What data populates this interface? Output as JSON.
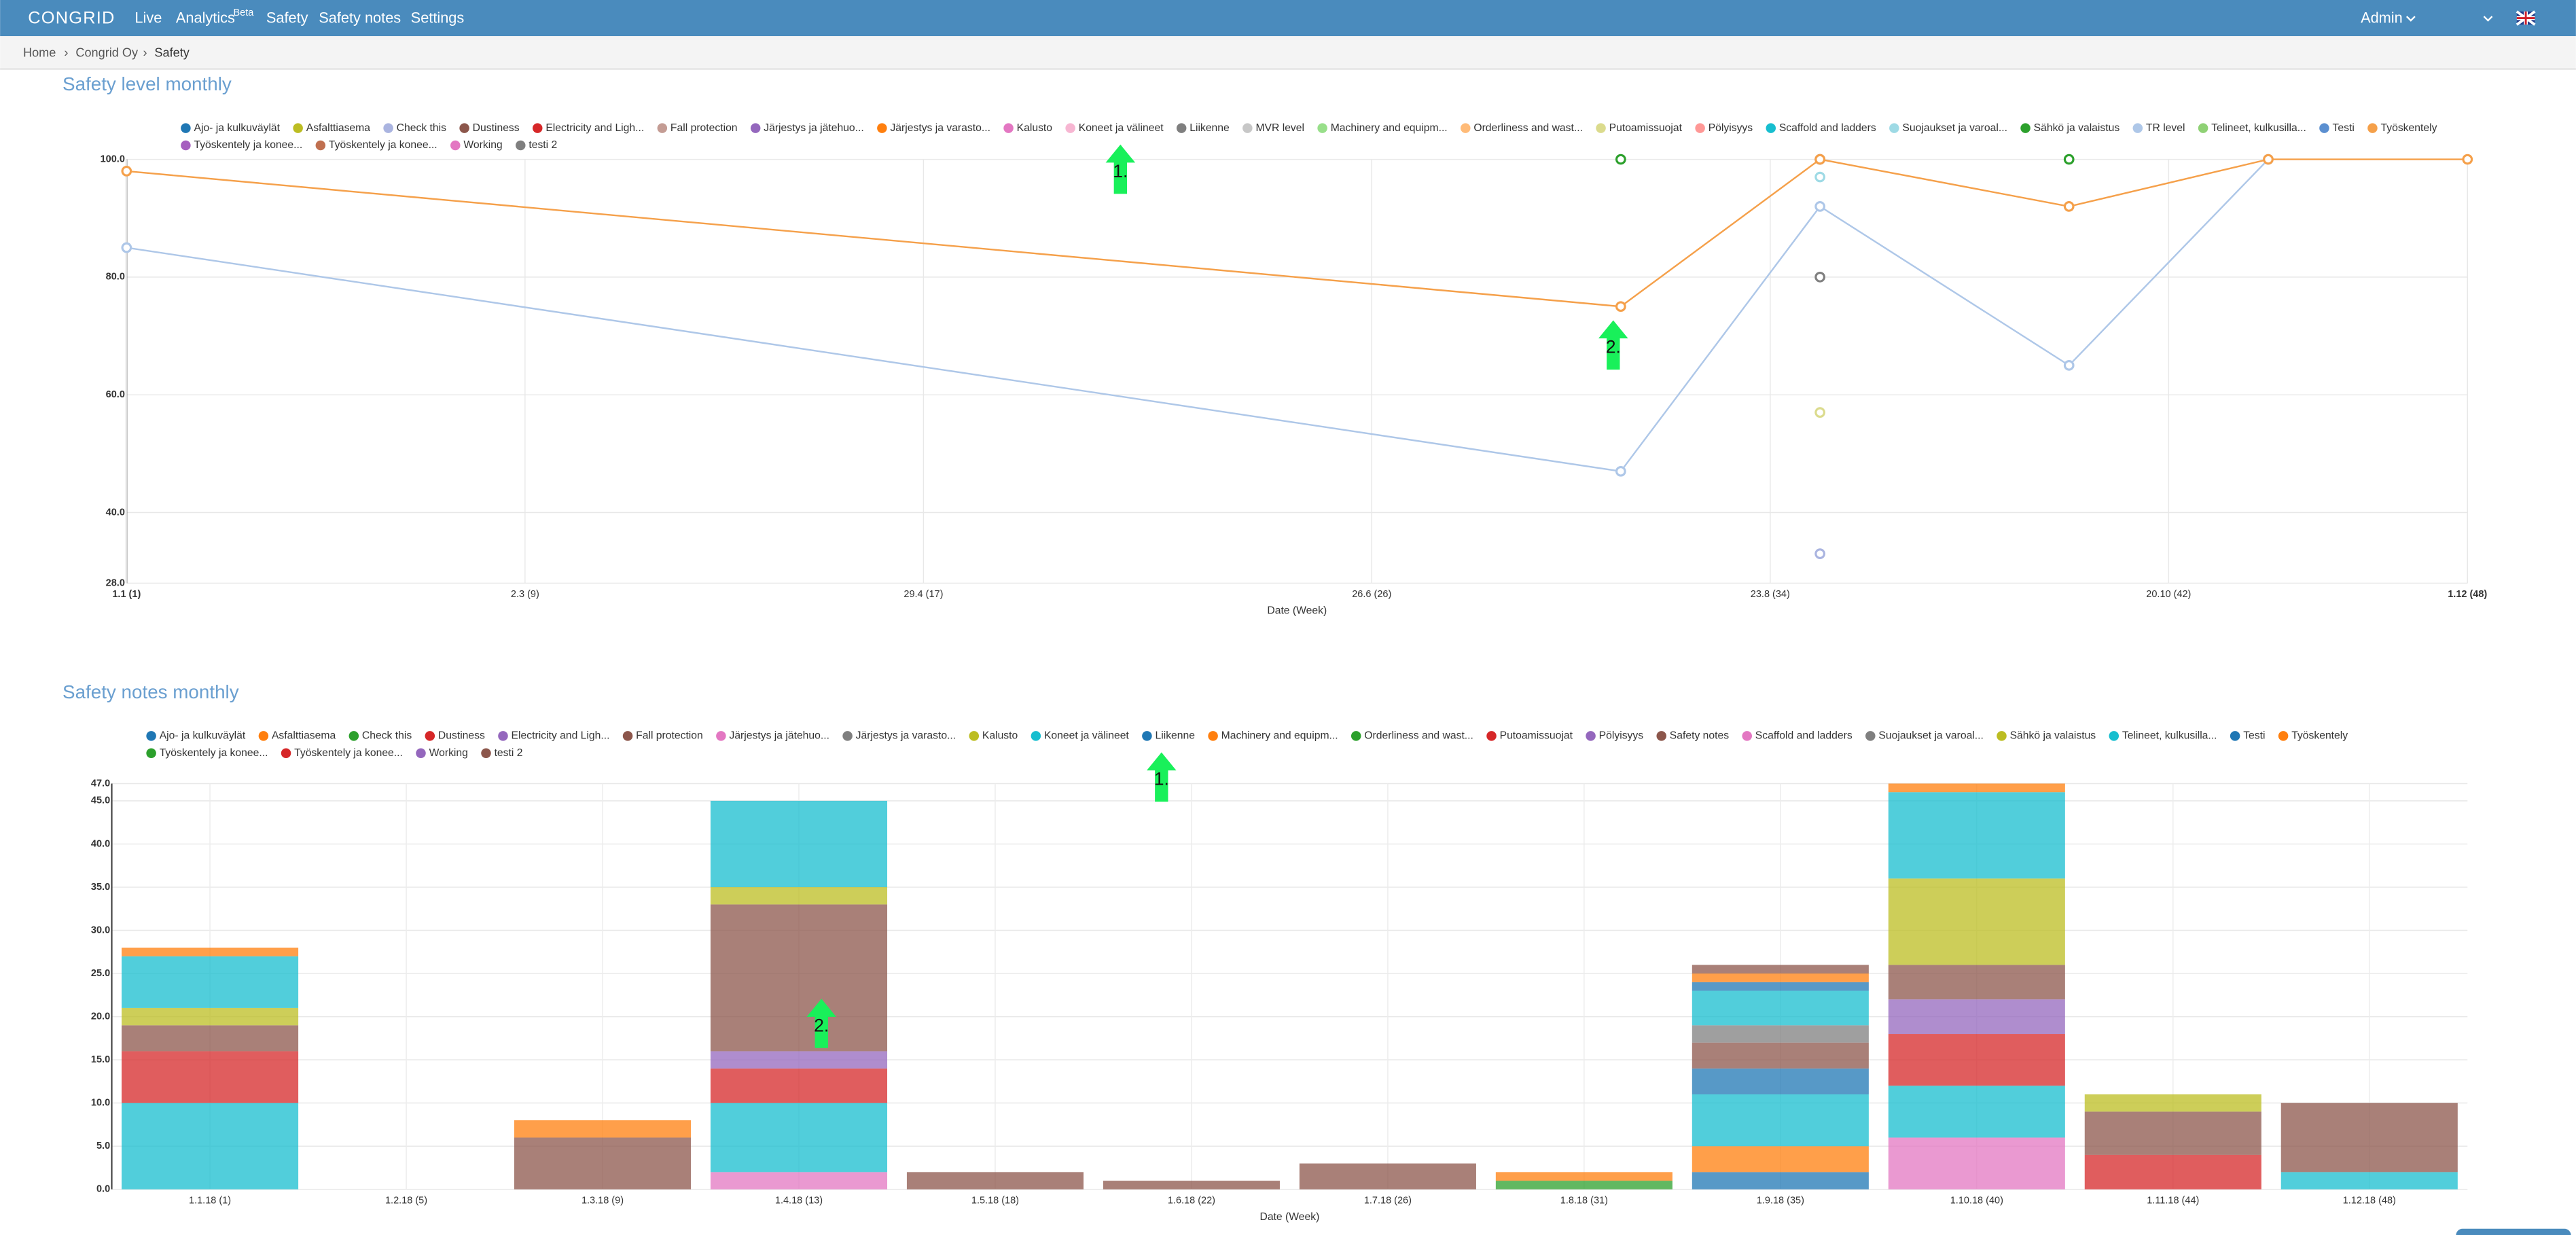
{
  "nav": {
    "logo": "CONGRID",
    "items": [
      "Live",
      "Analytics",
      "Safety",
      "Safety notes",
      "Settings"
    ],
    "beta": "Beta",
    "user": "Admin"
  },
  "breadcrumb": [
    "Home",
    "Congrid Oy",
    "Safety"
  ],
  "charts": [
    {
      "type": "line",
      "title": "Safety level monthly",
      "xlabel": "Date (Week)",
      "x": [
        1,
        31,
        35,
        40,
        44,
        48
      ],
      "xlim": [
        1,
        48
      ],
      "xticks": [
        {
          "value": 1,
          "label": "1.1 (1)"
        },
        {
          "value": 9,
          "label": "2.3 (9)"
        },
        {
          "value": 17,
          "label": "29.4 (17)"
        },
        {
          "value": 26,
          "label": "26.6 (26)"
        },
        {
          "value": 34,
          "label": "23.8 (34)"
        },
        {
          "value": 42,
          "label": "20.10 (42)"
        },
        {
          "value": 48,
          "label": "1.12 (48)"
        }
      ],
      "ylim": [
        28,
        100
      ],
      "yticks": [
        {
          "value": 28,
          "label": "28.0"
        },
        {
          "value": 40,
          "label": "40.0"
        },
        {
          "value": 60,
          "label": "60.0"
        },
        {
          "value": 80,
          "label": "80.0"
        },
        {
          "value": 100,
          "label": "100.0"
        }
      ],
      "annotations": [
        "1.",
        "2."
      ],
      "series": [
        {
          "name": "Ajo- ja kulkuväylät",
          "color": "#1f77b4",
          "values": [
            null,
            null,
            null,
            null,
            null,
            null
          ]
        },
        {
          "name": "Asfalttiasema",
          "color": "#bcbd22",
          "values": [
            null,
            null,
            null,
            null,
            null,
            null
          ]
        },
        {
          "name": "Check this",
          "color": "#aab4e0",
          "values": [
            null,
            null,
            33,
            null,
            null,
            null
          ]
        },
        {
          "name": "Dustiness",
          "color": "#8c564b",
          "values": [
            null,
            null,
            100,
            null,
            null,
            null
          ]
        },
        {
          "name": "Electricity and Ligh...",
          "color": "#d62728",
          "values": [
            null,
            null,
            null,
            null,
            null,
            null
          ]
        },
        {
          "name": "Fall protection",
          "color": "#c49c94",
          "values": [
            null,
            null,
            null,
            null,
            null,
            null
          ]
        },
        {
          "name": "Järjestys ja jätehuo...",
          "color": "#9467bd",
          "values": [
            null,
            null,
            null,
            null,
            null,
            null
          ]
        },
        {
          "name": "Järjestys ja varasto...",
          "color": "#ff7f0e",
          "values": [
            null,
            null,
            null,
            null,
            null,
            null
          ]
        },
        {
          "name": "Kalusto",
          "color": "#e377c2",
          "values": [
            null,
            null,
            null,
            null,
            null,
            null
          ]
        },
        {
          "name": "Koneet ja välineet",
          "color": "#f7b6d2",
          "values": [
            null,
            null,
            null,
            null,
            null,
            null
          ]
        },
        {
          "name": "Liikenne",
          "color": "#7f7f7f",
          "values": [
            null,
            null,
            80,
            null,
            null,
            null
          ]
        },
        {
          "name": "MVR level",
          "color": "#c7c7c7",
          "values": [
            null,
            null,
            null,
            null,
            null,
            null
          ]
        },
        {
          "name": "Machinery and equipm...",
          "color": "#98df8a",
          "values": [
            null,
            null,
            null,
            null,
            null,
            null
          ]
        },
        {
          "name": "Orderliness and wast...",
          "color": "#ffbb78",
          "values": [
            null,
            null,
            null,
            null,
            null,
            null
          ]
        },
        {
          "name": "Putoamissuojat",
          "color": "#dbdb8d",
          "values": [
            null,
            null,
            57,
            null,
            null,
            null
          ]
        },
        {
          "name": "Pölyisyys",
          "color": "#ff9896",
          "values": [
            null,
            null,
            null,
            null,
            null,
            null
          ]
        },
        {
          "name": "Scaffold and ladders",
          "color": "#17becf",
          "values": [
            null,
            null,
            null,
            null,
            null,
            null
          ]
        },
        {
          "name": "Suojaukset ja varoal...",
          "color": "#9edae5",
          "values": [
            null,
            null,
            97,
            null,
            null,
            null
          ]
        },
        {
          "name": "Sähkö ja valaistus",
          "color": "#2ca02c",
          "values": [
            null,
            100,
            null,
            100,
            null,
            null
          ]
        },
        {
          "name": "TR level",
          "color": "#aec7e8",
          "values": [
            85,
            47,
            92,
            65,
            100,
            null
          ]
        },
        {
          "name": "Telineet, kulkusilla...",
          "color": "#8fd175",
          "values": [
            null,
            null,
            null,
            null,
            null,
            null
          ]
        },
        {
          "name": "Testi",
          "color": "#5b8fd0",
          "values": [
            null,
            null,
            null,
            null,
            null,
            null
          ]
        },
        {
          "name": "Työskentely",
          "color": "#f5a04a",
          "values": [
            98,
            75,
            100,
            92,
            100,
            100
          ]
        },
        {
          "name": "Työskentely ja konee...",
          "color": "#a65fbf",
          "values": [
            null,
            null,
            null,
            null,
            null,
            null
          ]
        },
        {
          "name": "Työskentely ja konee...",
          "color": "#c07050",
          "values": [
            null,
            null,
            null,
            null,
            null,
            null
          ]
        },
        {
          "name": "Working",
          "color": "#e377c2",
          "values": [
            null,
            null,
            null,
            null,
            null,
            null
          ]
        },
        {
          "name": "testi 2",
          "color": "#7f7f7f",
          "values": [
            null,
            null,
            null,
            null,
            null,
            null
          ]
        }
      ]
    },
    {
      "type": "bar",
      "stacked": true,
      "title": "Safety notes monthly",
      "xlabel": "Date (Week)",
      "categories": [
        "1.1.18 (1)",
        "1.2.18 (5)",
        "1.3.18 (9)",
        "1.4.18 (13)",
        "1.5.18 (18)",
        "1.6.18 (22)",
        "1.7.18 (26)",
        "1.8.18 (31)",
        "1.9.18 (35)",
        "1.10.18 (40)",
        "1.11.18 (44)",
        "1.12.18 (48)"
      ],
      "ylim": [
        0,
        47
      ],
      "yticks": [
        {
          "value": 0,
          "label": "0.0"
        },
        {
          "value": 5,
          "label": "5.0"
        },
        {
          "value": 10,
          "label": "10.0"
        },
        {
          "value": 15,
          "label": "15.0"
        },
        {
          "value": 20,
          "label": "20.0"
        },
        {
          "value": 25,
          "label": "25.0"
        },
        {
          "value": 30,
          "label": "30.0"
        },
        {
          "value": 35,
          "label": "35.0"
        },
        {
          "value": 40,
          "label": "40.0"
        },
        {
          "value": 45,
          "label": "45.0"
        },
        {
          "value": 47,
          "label": "47.0"
        }
      ],
      "annotations": [
        "1.",
        "2."
      ],
      "series": [
        {
          "name": "Ajo- ja kulkuväylät",
          "color": "#1f77b4",
          "values": [
            0,
            0,
            0,
            0,
            0,
            0,
            0,
            0,
            2,
            0,
            0,
            0
          ]
        },
        {
          "name": "Asfalttiasema",
          "color": "#ff7f0e",
          "values": [
            0,
            0,
            0,
            0,
            0,
            0,
            0,
            0,
            3,
            0,
            0,
            0
          ]
        },
        {
          "name": "Check this",
          "color": "#2ca02c",
          "values": [
            0,
            0,
            0,
            0,
            0,
            0,
            0,
            1,
            0,
            0,
            0,
            0
          ]
        },
        {
          "name": "Dustiness",
          "color": "#d62728",
          "values": [
            0,
            0,
            0,
            0,
            0,
            0,
            0,
            0,
            0,
            0,
            0,
            0
          ]
        },
        {
          "name": "Electricity and Ligh...",
          "color": "#9467bd",
          "values": [
            0,
            0,
            0,
            0,
            0,
            0,
            0,
            0,
            0,
            0,
            0,
            0
          ]
        },
        {
          "name": "Fall protection",
          "color": "#8c564b",
          "values": [
            0,
            0,
            0,
            0,
            0,
            0,
            0,
            0,
            0,
            0,
            0,
            0
          ]
        },
        {
          "name": "Järjestys ja jätehuo...",
          "color": "#e377c2",
          "values": [
            0,
            0,
            0,
            2,
            0,
            0,
            0,
            0,
            0,
            6,
            0,
            0
          ]
        },
        {
          "name": "Järjestys ja varasto...",
          "color": "#7f7f7f",
          "values": [
            0,
            0,
            0,
            0,
            0,
            0,
            0,
            0,
            0,
            0,
            0,
            0
          ]
        },
        {
          "name": "Kalusto",
          "color": "#bcbd22",
          "values": [
            0,
            0,
            0,
            0,
            0,
            0,
            0,
            0,
            0,
            0,
            0,
            0
          ]
        },
        {
          "name": "Koneet ja välineet",
          "color": "#17becf",
          "values": [
            10,
            0,
            0,
            8,
            0,
            0,
            0,
            0,
            6,
            6,
            0,
            2
          ]
        },
        {
          "name": "Liikenne",
          "color": "#1f77b4",
          "values": [
            0,
            0,
            0,
            0,
            0,
            0,
            0,
            0,
            3,
            0,
            0,
            0
          ]
        },
        {
          "name": "Machinery and equipm...",
          "color": "#ff7f0e",
          "values": [
            0,
            0,
            0,
            0,
            0,
            0,
            0,
            1,
            0,
            0,
            0,
            0
          ]
        },
        {
          "name": "Orderliness and wast...",
          "color": "#2ca02c",
          "values": [
            0,
            0,
            0,
            0,
            0,
            0,
            0,
            0,
            0,
            0,
            0,
            0
          ]
        },
        {
          "name": "Putoamissuojat",
          "color": "#d62728",
          "values": [
            6,
            0,
            0,
            4,
            0,
            0,
            0,
            0,
            0,
            6,
            4,
            0
          ]
        },
        {
          "name": "Pölyisyys",
          "color": "#9467bd",
          "values": [
            0,
            0,
            0,
            2,
            0,
            0,
            0,
            0,
            0,
            4,
            0,
            0
          ]
        },
        {
          "name": "Safety notes",
          "color": "#8c564b",
          "values": [
            3,
            0,
            6,
            17,
            2,
            1,
            3,
            0,
            3,
            4,
            5,
            8
          ]
        },
        {
          "name": "Scaffold and ladders",
          "color": "#e377c2",
          "values": [
            0,
            0,
            0,
            0,
            0,
            0,
            0,
            0,
            0,
            0,
            0,
            0
          ]
        },
        {
          "name": "Suojaukset ja varoal...",
          "color": "#7f7f7f",
          "values": [
            0,
            0,
            0,
            0,
            0,
            0,
            0,
            0,
            2,
            0,
            0,
            0
          ]
        },
        {
          "name": "Sähkö ja valaistus",
          "color": "#bcbd22",
          "values": [
            2,
            0,
            0,
            2,
            0,
            0,
            0,
            0,
            0,
            10,
            2,
            0
          ]
        },
        {
          "name": "Telineet, kulkusilla...",
          "color": "#17becf",
          "values": [
            6,
            0,
            0,
            10,
            0,
            0,
            0,
            0,
            4,
            10,
            0,
            0
          ]
        },
        {
          "name": "Testi",
          "color": "#1f77b4",
          "values": [
            0,
            0,
            0,
            0,
            0,
            0,
            0,
            0,
            1,
            0,
            0,
            0
          ]
        },
        {
          "name": "Työskentely",
          "color": "#ff7f0e",
          "values": [
            1,
            0,
            2,
            0,
            0,
            0,
            0,
            0,
            1,
            1,
            0,
            0
          ]
        },
        {
          "name": "Työskentely ja konee...",
          "color": "#2ca02c",
          "values": [
            0,
            0,
            0,
            0,
            0,
            0,
            0,
            0,
            0,
            0,
            0,
            0
          ]
        },
        {
          "name": "Työskentely ja konee...",
          "color": "#d62728",
          "values": [
            0,
            0,
            0,
            0,
            0,
            0,
            0,
            0,
            0,
            0,
            0,
            0
          ]
        },
        {
          "name": "Working",
          "color": "#9467bd",
          "values": [
            0,
            0,
            0,
            0,
            0,
            0,
            0,
            0,
            0,
            0,
            0,
            0
          ]
        },
        {
          "name": "testi 2",
          "color": "#8c564b",
          "values": [
            0,
            0,
            0,
            0,
            0,
            0,
            0,
            0,
            1,
            0,
            0,
            0
          ]
        }
      ]
    }
  ]
}
